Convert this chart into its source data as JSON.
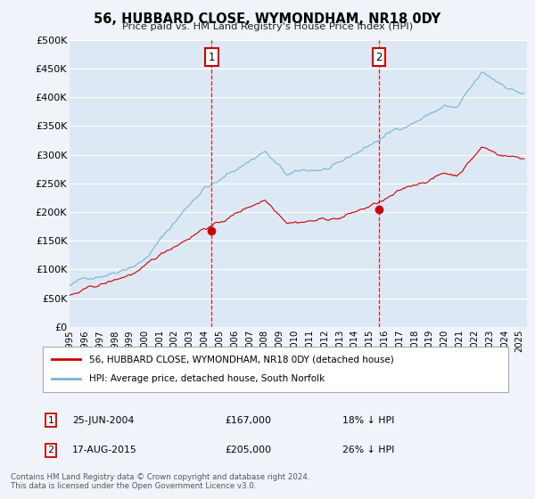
{
  "title": "56, HUBBARD CLOSE, WYMONDHAM, NR18 0DY",
  "subtitle": "Price paid vs. HM Land Registry's House Price Index (HPI)",
  "ylabel_ticks": [
    "£0",
    "£50K",
    "£100K",
    "£150K",
    "£200K",
    "£250K",
    "£300K",
    "£350K",
    "£400K",
    "£450K",
    "£500K"
  ],
  "ytick_values": [
    0,
    50000,
    100000,
    150000,
    200000,
    250000,
    300000,
    350000,
    400000,
    450000,
    500000
  ],
  "ylim": [
    0,
    500000
  ],
  "xlim_start": 1995.0,
  "xlim_end": 2025.5,
  "hpi_color": "#7ab3d4",
  "price_color": "#cc0000",
  "dashed_line_color": "#cc0000",
  "annotation_box_color": "#cc0000",
  "background_color": "#f0f4fa",
  "plot_bg_color": "#dce9f5",
  "grid_color": "#ffffff",
  "legend_label_red": "56, HUBBARD CLOSE, WYMONDHAM, NR18 0DY (detached house)",
  "legend_label_blue": "HPI: Average price, detached house, South Norfolk",
  "sale1_label": "1",
  "sale1_date": "25-JUN-2004",
  "sale1_price": "£167,000",
  "sale1_hpi": "18% ↓ HPI",
  "sale1_x": 2004.48,
  "sale1_y": 167000,
  "sale2_label": "2",
  "sale2_date": "17-AUG-2015",
  "sale2_price": "£205,000",
  "sale2_hpi": "26% ↓ HPI",
  "sale2_x": 2015.63,
  "sale2_y": 205000,
  "footnote": "Contains HM Land Registry data © Crown copyright and database right 2024.\nThis data is licensed under the Open Government Licence v3.0."
}
